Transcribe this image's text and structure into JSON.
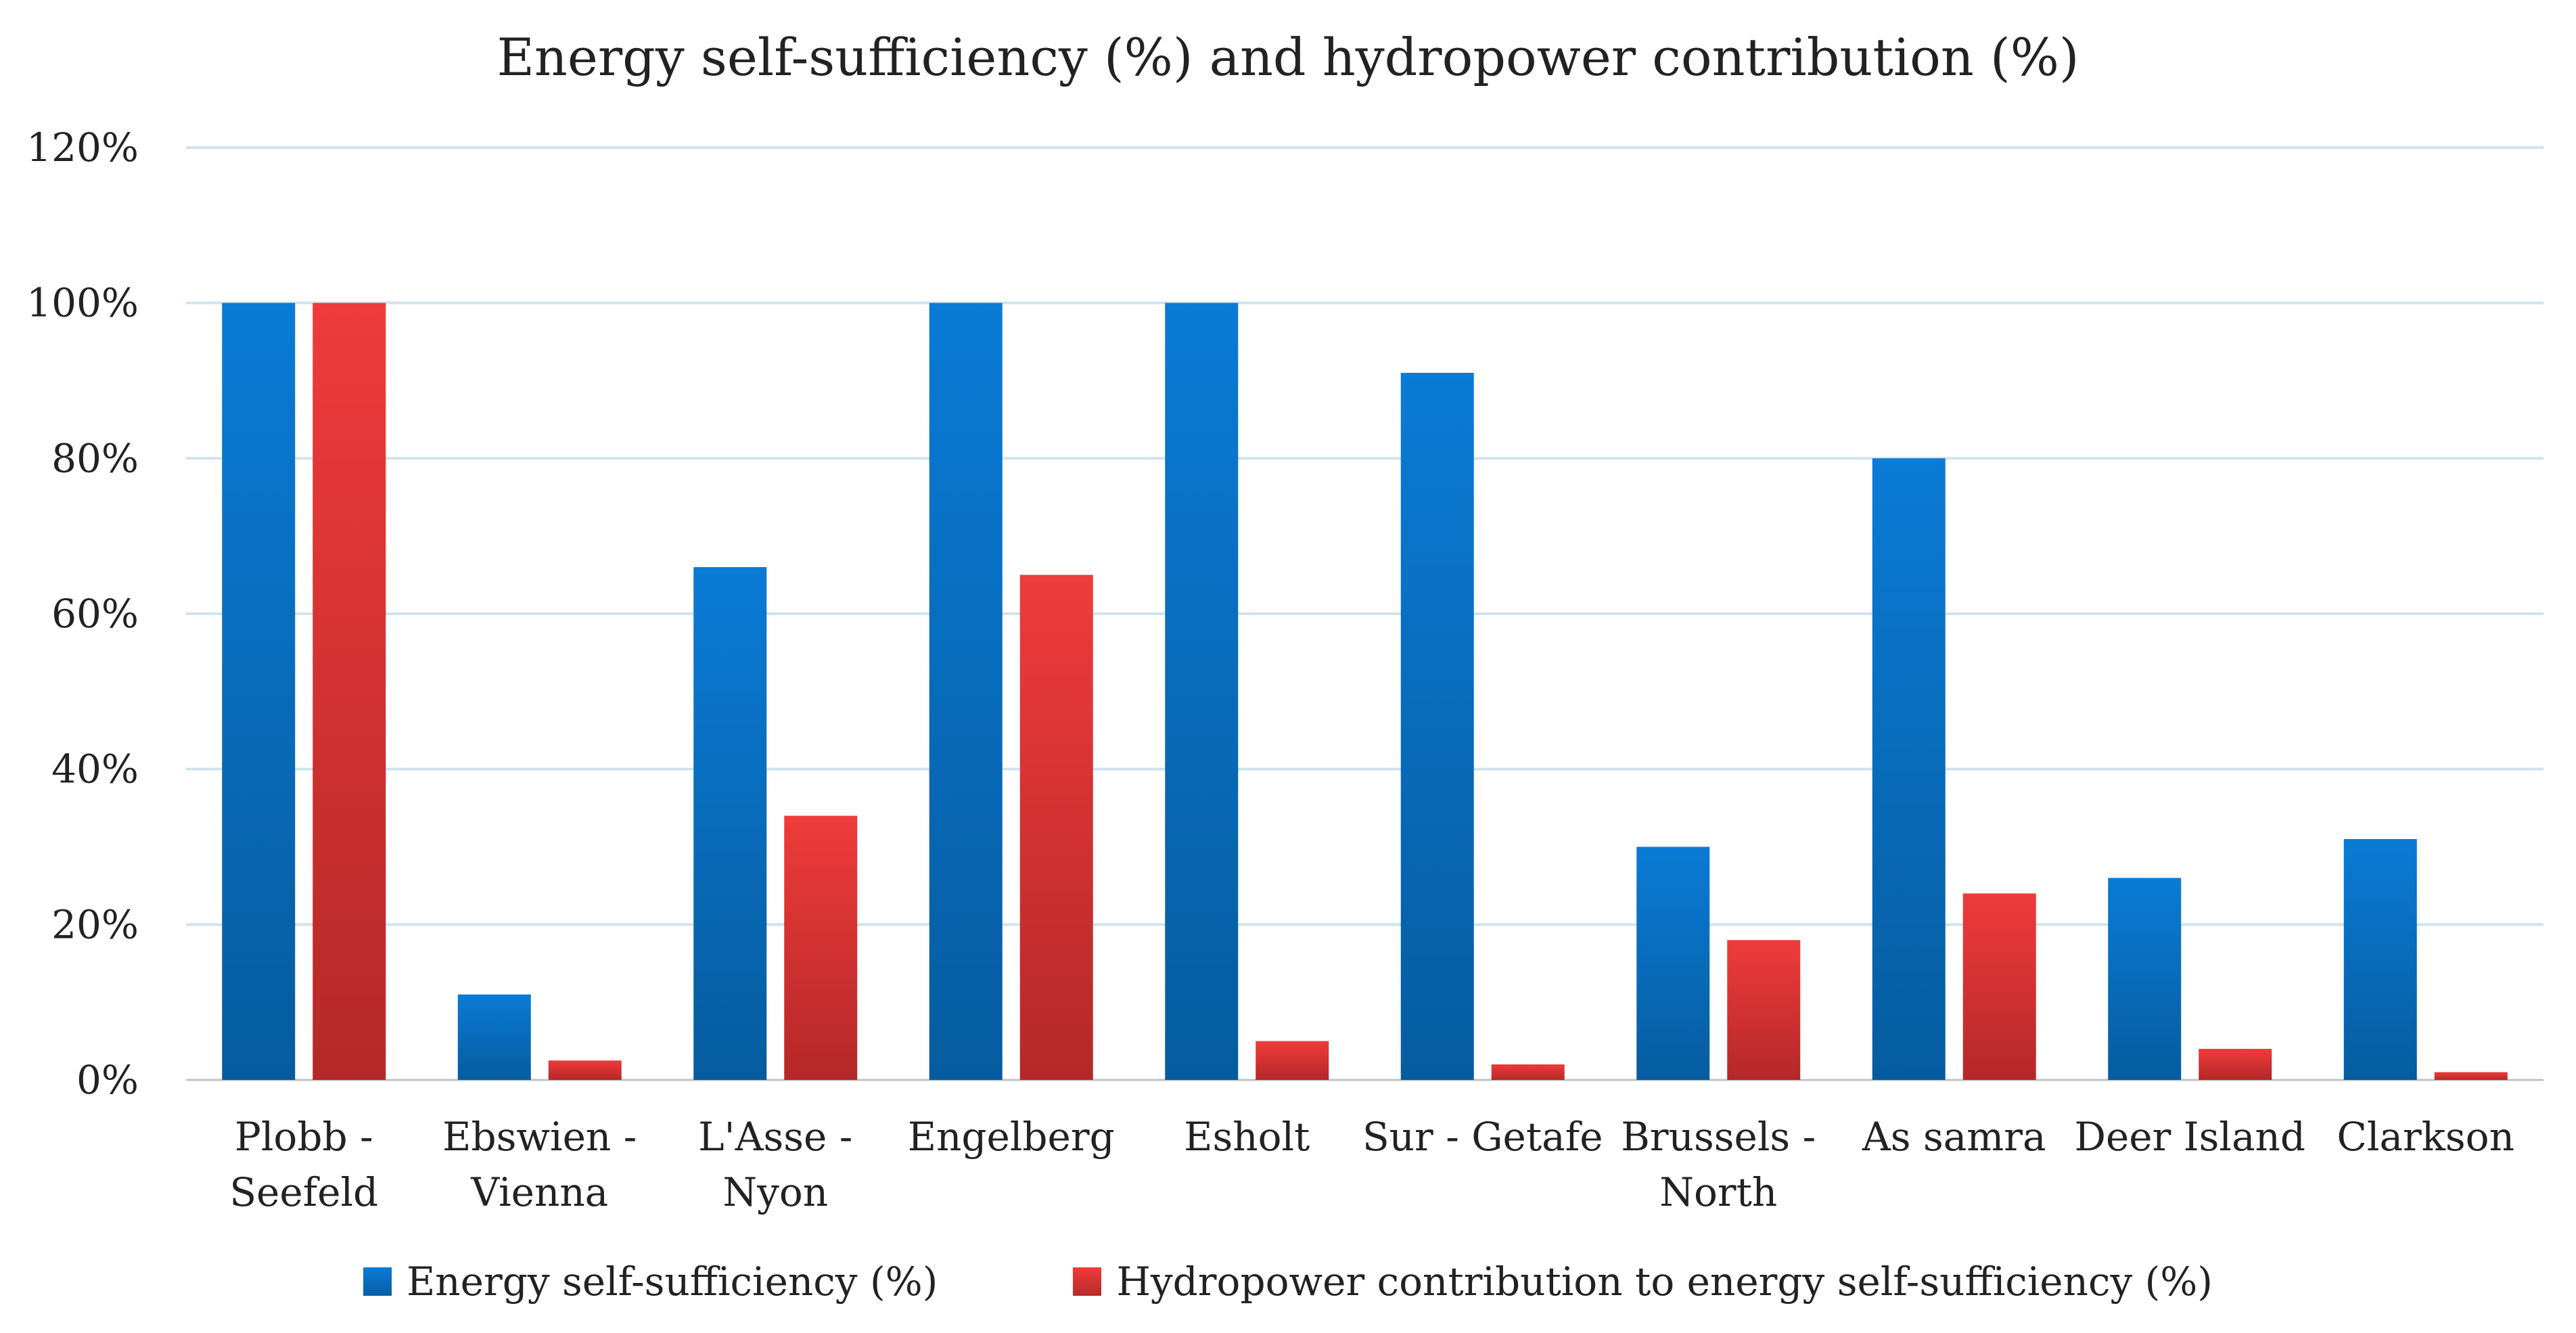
{
  "chart_data": {
    "type": "bar",
    "title": "Energy self-sufficiency (%) and hydropower contribution (%)",
    "xlabel": "",
    "ylabel": "",
    "ylim": [
      0,
      120
    ],
    "yticks": [
      "0%",
      "20%",
      "40%",
      "60%",
      "80%",
      "100%",
      "120%"
    ],
    "grid": true,
    "legend_position": "bottom",
    "categories": [
      [
        "Plobb -",
        "Seefeld"
      ],
      [
        "Ebswien -",
        "Vienna"
      ],
      [
        "L'Asse -",
        "Nyon"
      ],
      [
        "Engelberg"
      ],
      [
        "Esholt"
      ],
      [
        "Sur - Getafe"
      ],
      [
        "Brussels -",
        "North"
      ],
      [
        "As samra"
      ],
      [
        "Deer Island"
      ],
      [
        "Clarkson"
      ]
    ],
    "series": [
      {
        "name": "Energy self-sufficiency (%)",
        "color": "#0a7bd6",
        "values": [
          100,
          11,
          66,
          100,
          100,
          91,
          30,
          80,
          26,
          31
        ]
      },
      {
        "name": "Hydropower contribution to energy self-sufficiency (%)",
        "color": "#e83535",
        "values": [
          100,
          2.5,
          34,
          65,
          5,
          2,
          18,
          24,
          4,
          1
        ]
      }
    ]
  }
}
